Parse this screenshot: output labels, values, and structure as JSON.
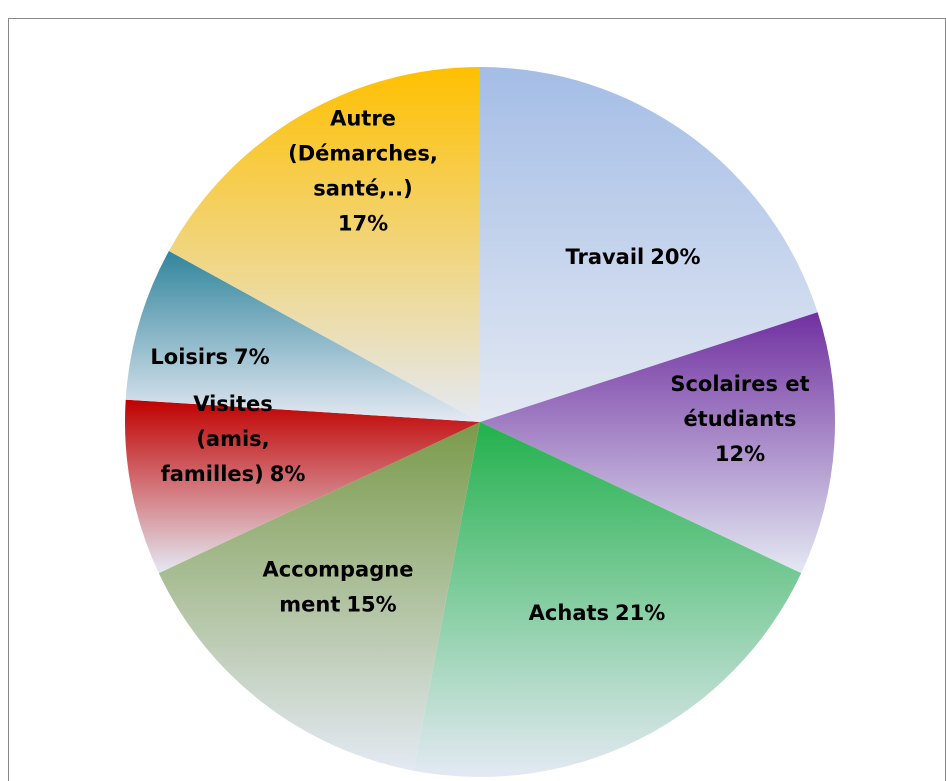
{
  "chart_data": {
    "type": "pie",
    "categories": [
      "Travail",
      "Scolaires et\nétudiants",
      "Achats",
      "Accompagne\nment",
      "Visites\n(amis,\nfamilles)",
      "Loisirs",
      "Autre\n(Démarches,\nsanté,..)"
    ],
    "values": [
      20,
      12,
      21,
      15,
      8,
      7,
      17
    ],
    "value_labels": [
      "20%",
      "12%",
      "21%",
      "15%",
      "8%",
      "7%",
      "17%"
    ],
    "colors": [
      "#a4bde6",
      "#7030a0",
      "#22b14c",
      "#7a9a4a",
      "#c00000",
      "#31859c",
      "#ffc000"
    ]
  }
}
